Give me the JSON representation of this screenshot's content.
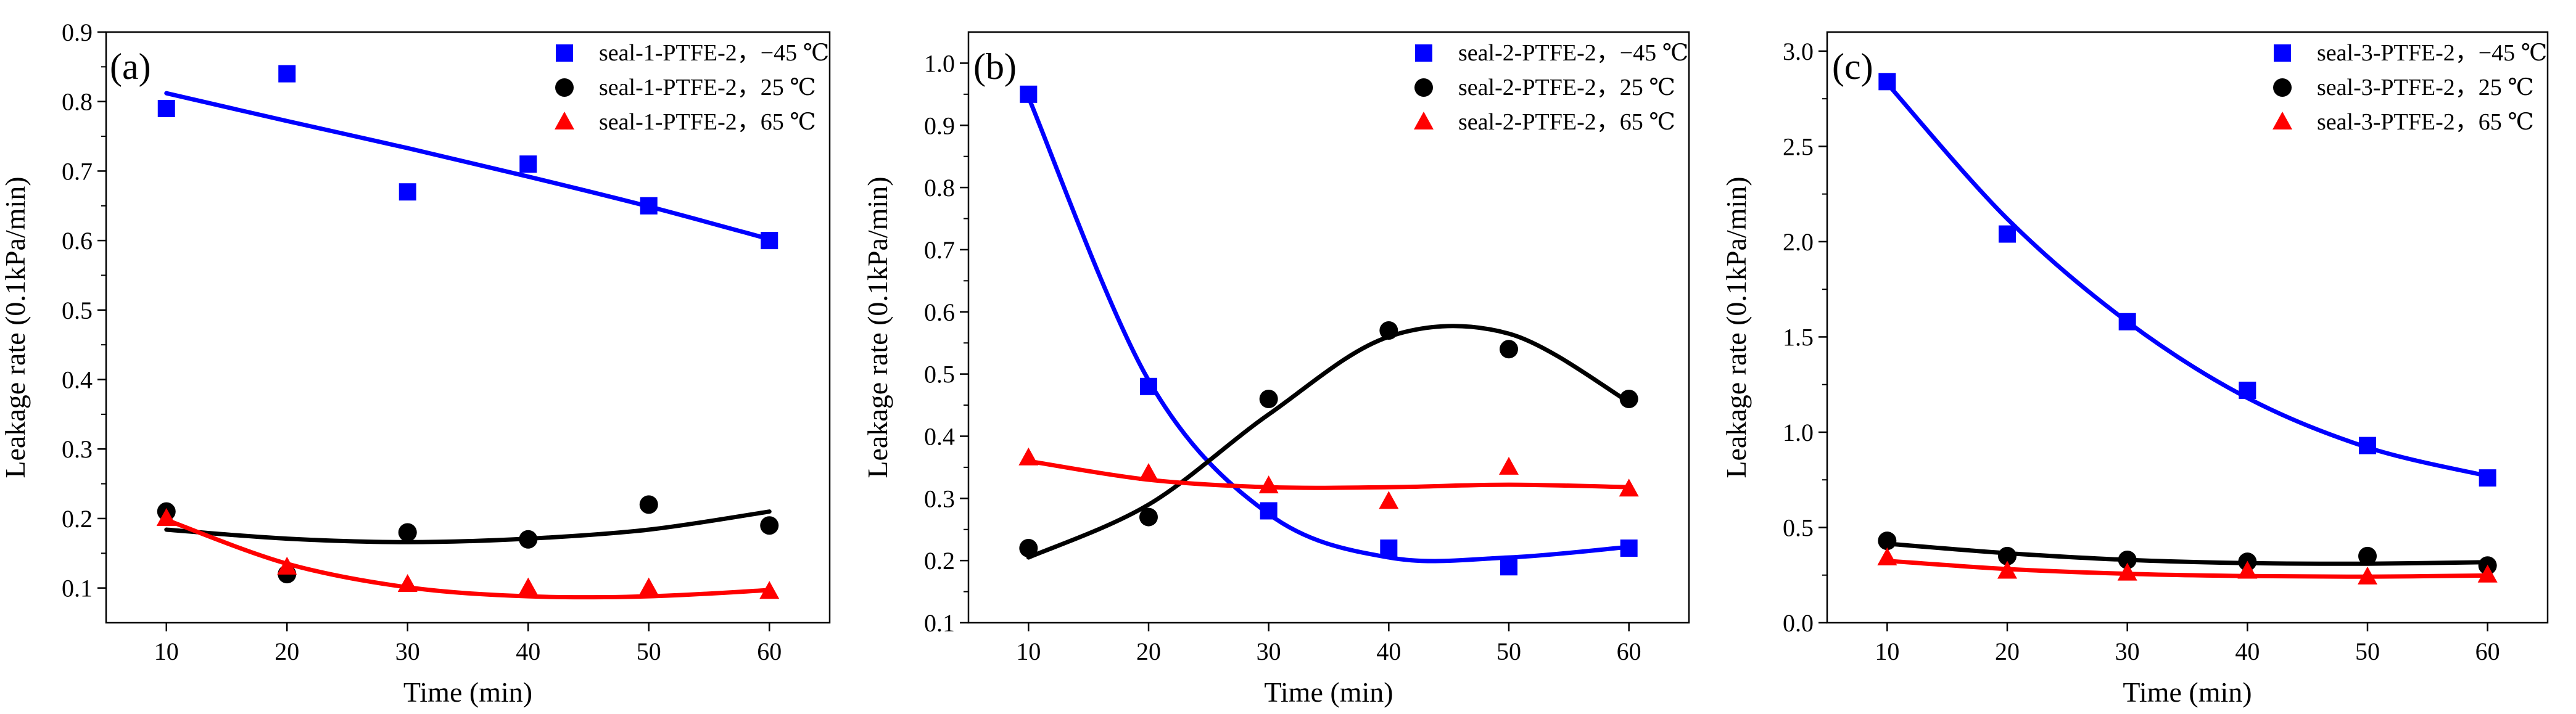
{
  "chart_data": [
    {
      "type": "scatter",
      "panel_label": "(a)",
      "xlabel": "Time (min)",
      "ylabel": "Leakage rate (0.1kPa/min)",
      "xlim": [
        5,
        65
      ],
      "ylim": [
        0.05,
        0.9
      ],
      "xticks": [
        "10",
        "20",
        "30",
        "40",
        "50",
        "60"
      ],
      "yticks": [
        "0.1",
        "0.2",
        "0.3",
        "0.4",
        "0.5",
        "0.6",
        "0.7",
        "0.8",
        "0.9"
      ],
      "grid": false,
      "legend_position": "top-right",
      "x": [
        10,
        20,
        30,
        40,
        50,
        60
      ],
      "series": [
        {
          "name": "seal-1-PTFE-2，−45 ℃",
          "marker": "square",
          "color": "#0000ff",
          "values": [
            0.79,
            0.84,
            0.67,
            0.71,
            0.65,
            0.6
          ],
          "fit": [
            0.812,
            0.772,
            0.733,
            0.692,
            0.649,
            0.602
          ]
        },
        {
          "name": "seal-1-PTFE-2，25 ℃",
          "marker": "circle",
          "color": "#000000",
          "values": [
            0.21,
            0.12,
            0.18,
            0.17,
            0.22,
            0.19
          ],
          "fit": [
            0.184,
            0.171,
            0.166,
            0.171,
            0.184,
            0.21
          ]
        },
        {
          "name": "seal-1-PTFE-2，65 ℃",
          "marker": "triangle",
          "color": "#ff0000",
          "values": [
            0.2,
            0.13,
            0.105,
            0.1,
            0.1,
            0.095
          ],
          "fit": [
            0.198,
            0.135,
            0.101,
            0.088,
            0.088,
            0.097
          ]
        }
      ]
    },
    {
      "type": "scatter",
      "panel_label": "(b)",
      "xlabel": "Time (min)",
      "ylabel": "Leakage rate (0.1kPa/min)",
      "xlim": [
        5,
        65
      ],
      "ylim": [
        0.1,
        1.05
      ],
      "xticks": [
        "10",
        "20",
        "30",
        "40",
        "50",
        "60"
      ],
      "yticks": [
        "0.1",
        "0.2",
        "0.3",
        "0.4",
        "0.5",
        "0.6",
        "0.7",
        "0.8",
        "0.9",
        "1.0"
      ],
      "grid": false,
      "legend_position": "top-right",
      "x": [
        10,
        20,
        30,
        40,
        50,
        60
      ],
      "series": [
        {
          "name": "seal-2-PTFE-2，−45 ℃",
          "marker": "square",
          "color": "#0000ff",
          "values": [
            0.95,
            0.48,
            0.28,
            0.22,
            0.19,
            0.22
          ],
          "fit": [
            0.945,
            0.49,
            0.275,
            0.205,
            0.205,
            0.222
          ]
        },
        {
          "name": "seal-2-PTFE-2，25 ℃",
          "marker": "circle",
          "color": "#000000",
          "values": [
            0.22,
            0.27,
            0.46,
            0.57,
            0.54,
            0.46
          ],
          "fit": [
            0.205,
            0.29,
            0.435,
            0.56,
            0.565,
            0.455
          ]
        },
        {
          "name": "seal-2-PTFE-2，65 ℃",
          "marker": "triangle",
          "color": "#ff0000",
          "values": [
            0.365,
            0.34,
            0.32,
            0.295,
            0.35,
            0.315
          ],
          "fit": [
            0.36,
            0.33,
            0.318,
            0.318,
            0.322,
            0.318
          ]
        }
      ]
    },
    {
      "type": "scatter",
      "panel_label": "(c)",
      "xlabel": "Time (min)",
      "ylabel": "Leakage rate (0.1kPa/min)",
      "xlim": [
        5,
        65
      ],
      "ylim": [
        0,
        3.1
      ],
      "xticks": [
        "10",
        "20",
        "30",
        "40",
        "50",
        "60"
      ],
      "yticks": [
        "0.0",
        "0.5",
        "1.0",
        "1.5",
        "2.0",
        "2.5",
        "3.0"
      ],
      "grid": false,
      "legend_position": "top-right",
      "x": [
        10,
        20,
        30,
        40,
        50,
        60
      ],
      "series": [
        {
          "name": "seal-3-PTFE-2，−45 ℃",
          "marker": "square",
          "color": "#0000ff",
          "values": [
            2.84,
            2.04,
            1.58,
            1.22,
            0.93,
            0.76
          ],
          "fit": [
            2.83,
            2.12,
            1.58,
            1.18,
            0.92,
            0.77
          ]
        },
        {
          "name": "seal-3-PTFE-2，25 ℃",
          "marker": "circle",
          "color": "#000000",
          "values": [
            0.43,
            0.35,
            0.33,
            0.32,
            0.35,
            0.3
          ],
          "fit": [
            0.415,
            0.365,
            0.33,
            0.313,
            0.31,
            0.318
          ]
        },
        {
          "name": "seal-3-PTFE-2，65 ℃",
          "marker": "triangle",
          "color": "#ff0000",
          "values": [
            0.34,
            0.27,
            0.26,
            0.27,
            0.24,
            0.25
          ],
          "fit": [
            0.325,
            0.282,
            0.257,
            0.245,
            0.242,
            0.248
          ]
        }
      ]
    }
  ]
}
